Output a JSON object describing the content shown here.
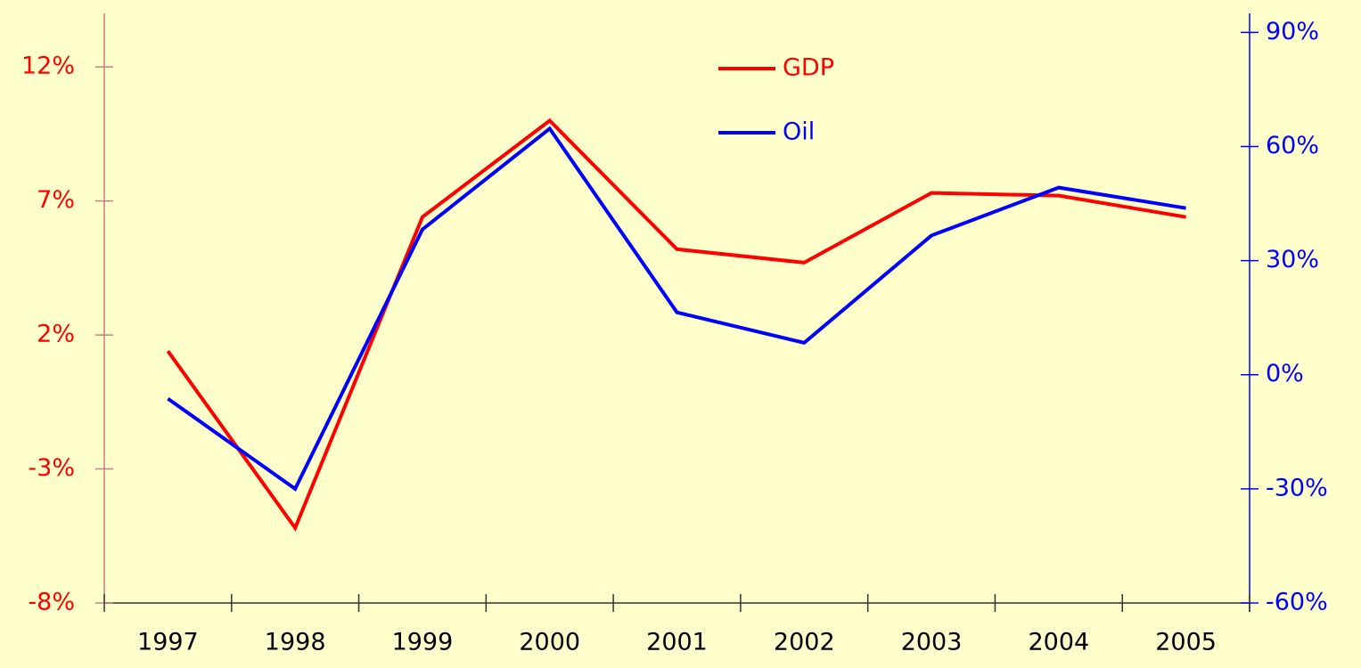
{
  "chart_data": {
    "type": "line",
    "categories": [
      "1997",
      "1998",
      "1999",
      "2000",
      "2001",
      "2002",
      "2003",
      "2004",
      "2005"
    ],
    "series": [
      {
        "name": "GDP",
        "color": "#ff0000",
        "values": [
          1.4,
          -5.2,
          6.4,
          10.0,
          5.2,
          4.7,
          7.3,
          7.2,
          6.4
        ]
      },
      {
        "name": "Oil",
        "color": "#0000ff",
        "axis": "y2",
        "values": [
          -6.3,
          -30.0,
          38.2,
          64.7,
          16.4,
          8.4,
          36.6,
          49.2,
          43.8
        ]
      }
    ],
    "ylim": [
      -8,
      14
    ],
    "yticks": [
      {
        "value": -8,
        "label": "-8%"
      },
      {
        "value": -3,
        "label": "-3%"
      },
      {
        "value": 2,
        "label": "2%"
      },
      {
        "value": 7,
        "label": "7%"
      },
      {
        "value": 12,
        "label": "12%"
      }
    ],
    "y2lim": [
      -60,
      95
    ],
    "y2ticks": [
      {
        "value": -60,
        "label": "-60%"
      },
      {
        "value": -30,
        "label": "-30%"
      },
      {
        "value": 0,
        "label": "0%"
      },
      {
        "value": 30,
        "label": "30%"
      },
      {
        "value": 60,
        "label": "60%"
      },
      {
        "value": 90,
        "label": "90%"
      }
    ],
    "legend": "top"
  }
}
